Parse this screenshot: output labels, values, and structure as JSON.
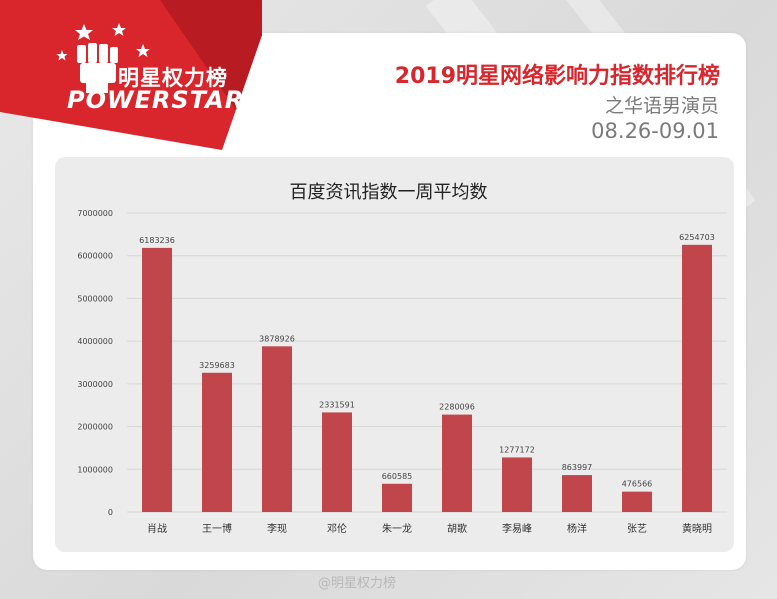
{
  "branding": {
    "logo_text": "明星权力榜",
    "logo_brand": "POWERSTAR"
  },
  "header": {
    "title": "2019明星网络影响力指数排行榜",
    "subtitle": "之华语男演员",
    "date_range": "08.26-09.01"
  },
  "colors": {
    "accent": "#d8262c",
    "bar": "#c1464b",
    "panel": "#ececec"
  },
  "chart_data": {
    "type": "bar",
    "title": "百度资讯指数一周平均数",
    "xlabel": "",
    "ylabel": "",
    "categories": [
      "肖战",
      "王一博",
      "李现",
      "邓伦",
      "朱一龙",
      "胡歌",
      "李易峰",
      "杨洋",
      "张艺",
      "黄晓明"
    ],
    "values": [
      6183236,
      3259683,
      3878926,
      2331591,
      660585,
      2280096,
      1277172,
      863997,
      476566,
      6254703
    ],
    "value_labels": [
      "6183236",
      "3259683",
      "3878926",
      "2331591",
      "660585",
      "2280096",
      "1277172",
      "863997",
      "476566",
      "6254703"
    ],
    "ylim": [
      0,
      7000000
    ],
    "yticks": [
      0,
      1000000,
      2000000,
      3000000,
      4000000,
      5000000,
      6000000,
      7000000
    ],
    "grid": true,
    "legend": "none"
  },
  "watermark": "@明星权力榜"
}
